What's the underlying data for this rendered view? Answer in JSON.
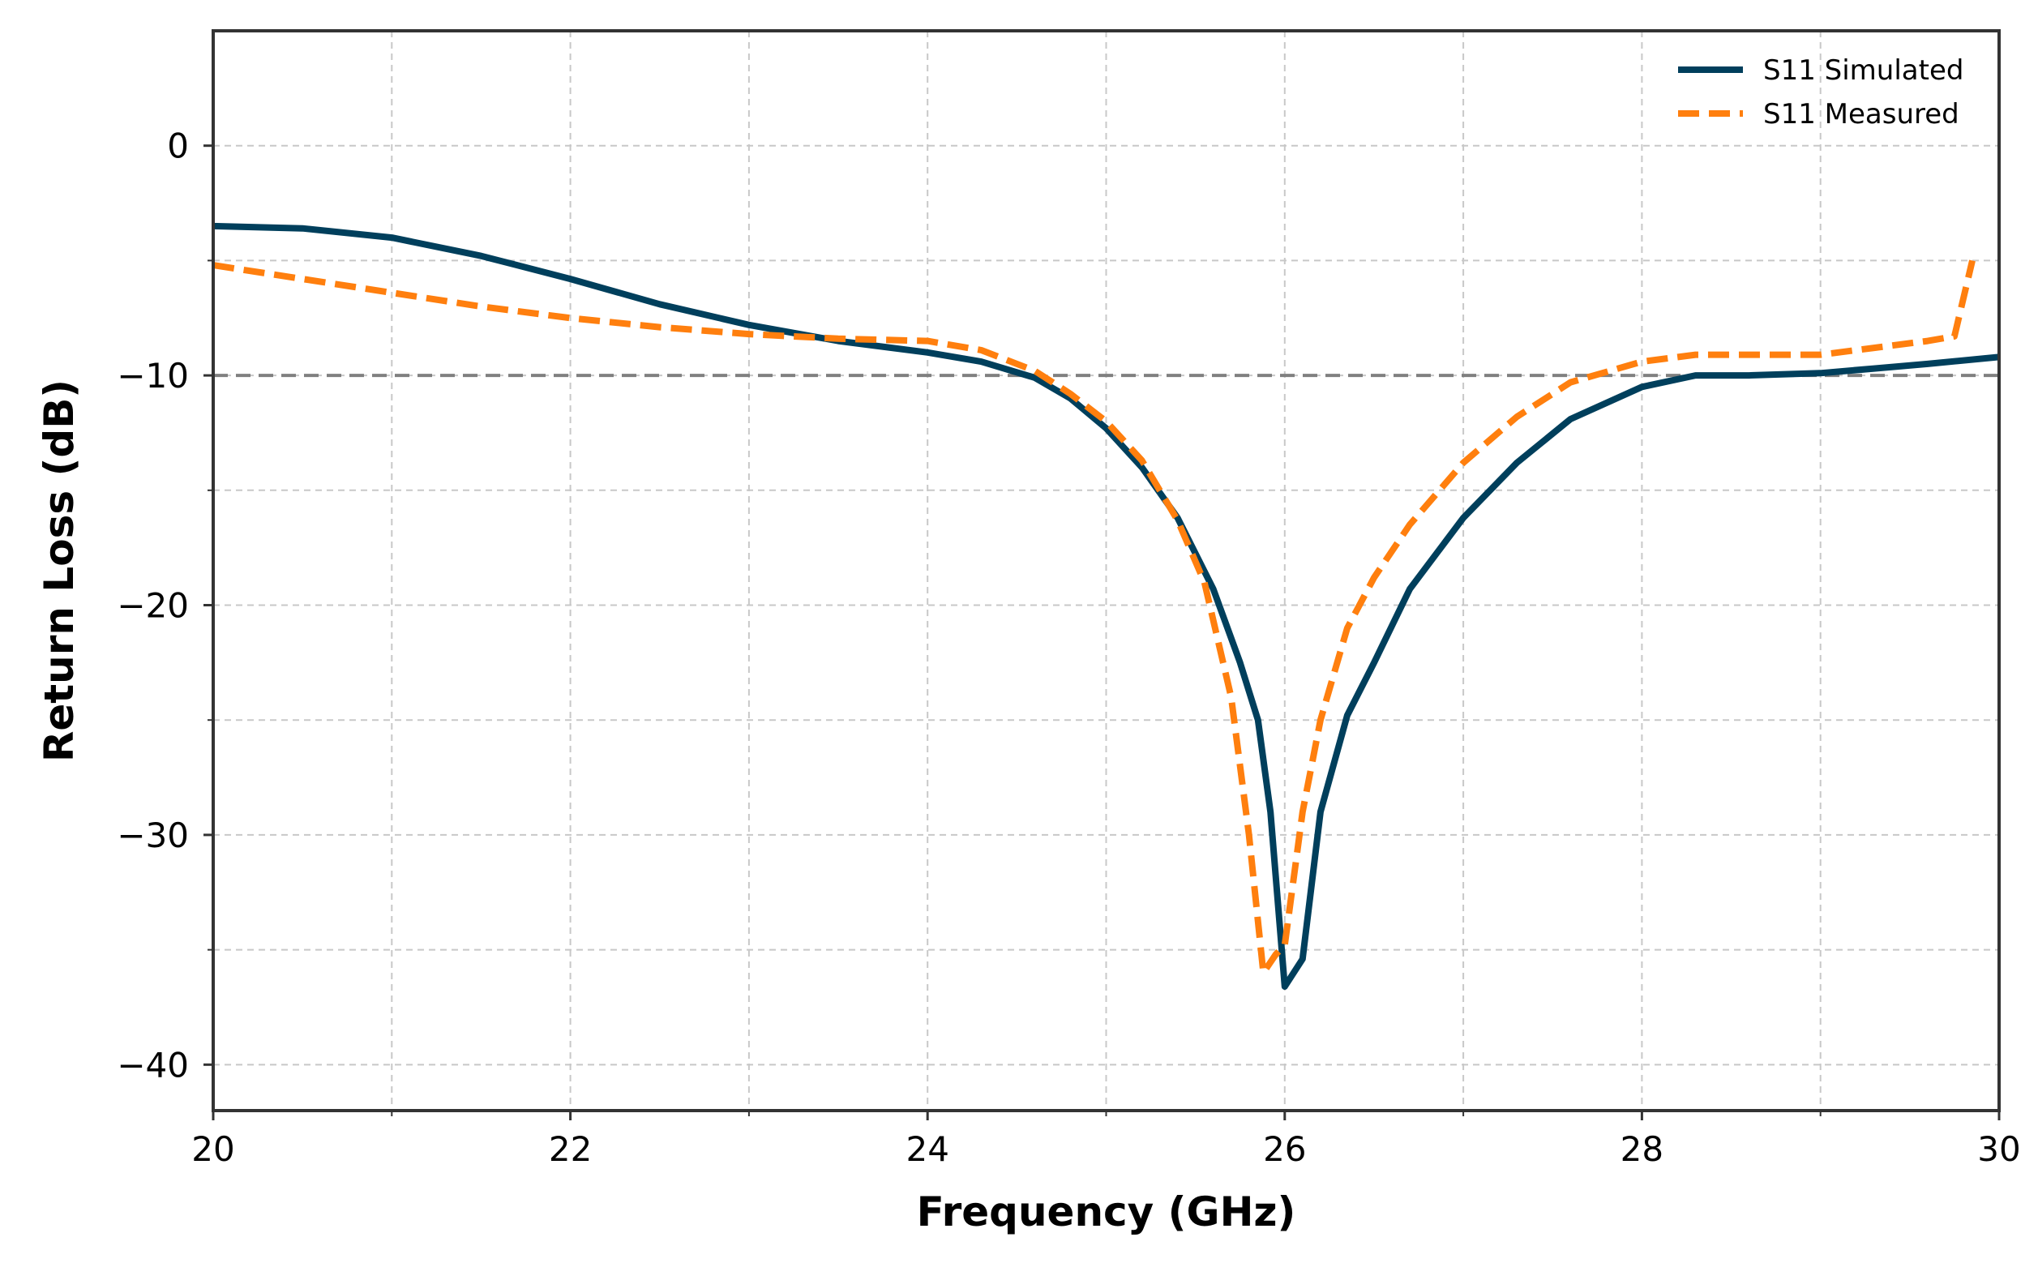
{
  "chart_data": {
    "type": "line",
    "title": "",
    "xlabel": "Frequency (GHz)",
    "ylabel": "Return Loss (dB)",
    "xlim": [
      20,
      30
    ],
    "ylim": [
      -42,
      5
    ],
    "xticks": [
      20,
      22,
      24,
      26,
      28,
      30
    ],
    "yticks": [
      0,
      -10,
      -20,
      -30,
      -40
    ],
    "xtick_labels": [
      "20",
      "22",
      "24",
      "26",
      "28",
      "30"
    ],
    "ytick_labels": [
      "0",
      "−10",
      "−20",
      "−30",
      "−40"
    ],
    "x_minor_grid": [
      21,
      23,
      25,
      27,
      29
    ],
    "y_minor_grid": [
      -5,
      -15,
      -25,
      -35
    ],
    "grid": true,
    "legend_position": "top-right",
    "reference_line": {
      "y": -10,
      "style": "dashed",
      "color": "#808080"
    },
    "series": [
      {
        "name": "S11 Simulated",
        "color": "#003f5c",
        "style": "solid",
        "x": [
          20,
          20.5,
          21,
          21.5,
          22,
          22.5,
          23,
          23.5,
          24,
          24.3,
          24.6,
          24.8,
          25,
          25.2,
          25.4,
          25.6,
          25.75,
          25.85,
          25.92,
          26,
          26.1,
          26.2,
          26.35,
          26.5,
          26.7,
          27,
          27.3,
          27.6,
          28,
          28.3,
          28.6,
          29,
          29.3,
          29.6,
          30
        ],
        "y": [
          -3.5,
          -3.6,
          -4.0,
          -4.8,
          -5.8,
          -6.9,
          -7.8,
          -8.5,
          -9.0,
          -9.4,
          -10.1,
          -11.0,
          -12.3,
          -14.0,
          -16.2,
          -19.3,
          -22.5,
          -25.0,
          -29.0,
          -36.6,
          -35.4,
          -29.0,
          -24.8,
          -22.5,
          -19.3,
          -16.2,
          -13.8,
          -11.9,
          -10.5,
          -10.0,
          -10.0,
          -9.9,
          -9.7,
          -9.5,
          -9.2
        ]
      },
      {
        "name": "S11 Measured",
        "color": "#ff7f0e",
        "style": "dashed",
        "x": [
          20,
          20.5,
          21,
          21.5,
          22,
          22.5,
          23,
          23.5,
          24,
          24.3,
          24.6,
          24.8,
          25,
          25.2,
          25.4,
          25.55,
          25.7,
          25.8,
          25.88,
          25.95,
          26,
          26.1,
          26.2,
          26.35,
          26.5,
          26.7,
          27,
          27.3,
          27.6,
          28,
          28.3,
          28.6,
          29,
          29.3,
          29.6,
          29.75,
          29.85
        ],
        "y": [
          -5.2,
          -5.8,
          -6.4,
          -7.0,
          -7.5,
          -7.9,
          -8.2,
          -8.4,
          -8.5,
          -8.9,
          -9.8,
          -10.8,
          -12.0,
          -13.7,
          -16.3,
          -19.0,
          -24.0,
          -30.0,
          -36.0,
          -35.2,
          -34.8,
          -29.0,
          -25.0,
          -21.0,
          -18.8,
          -16.5,
          -13.8,
          -11.8,
          -10.3,
          -9.4,
          -9.1,
          -9.1,
          -9.1,
          -8.8,
          -8.5,
          -8.3,
          -5.0
        ]
      }
    ]
  }
}
